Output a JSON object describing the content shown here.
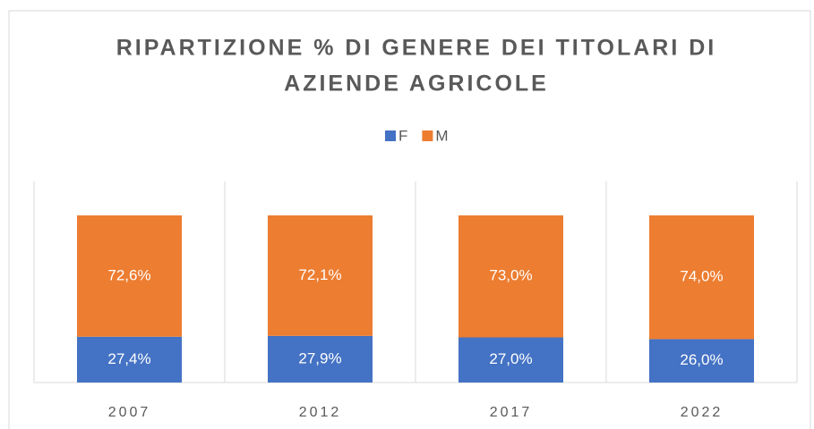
{
  "chart_data": {
    "type": "stacked_bar",
    "title": [
      "RIPARTIZIONE % DI GENERE DEI TITOLARI DI",
      "AZIENDE AGRICOLE"
    ],
    "categories": [
      "2007",
      "2012",
      "2017",
      "2022"
    ],
    "series": [
      {
        "name": "F",
        "color": "#4472c4",
        "values": [
          27.4,
          27.9,
          27.0,
          26.0
        ],
        "value_labels": [
          "27,4%",
          "27,9%",
          "27,0%",
          "26,0%"
        ]
      },
      {
        "name": "M",
        "color": "#ed7d31",
        "values": [
          72.6,
          72.1,
          73.0,
          74.0
        ],
        "value_labels": [
          "72,6%",
          "72,1%",
          "73,0%",
          "74,0%"
        ]
      }
    ],
    "ylim": [
      0,
      100
    ]
  }
}
